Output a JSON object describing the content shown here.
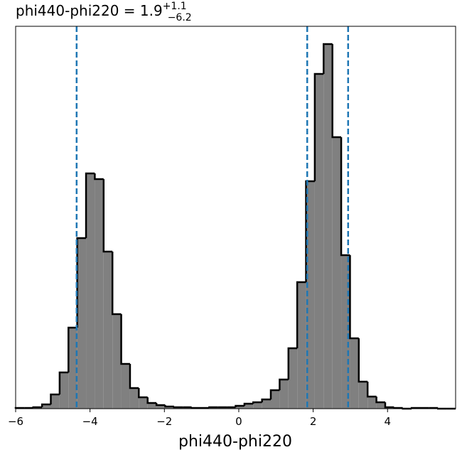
{
  "chart_data": {
    "type": "histogram",
    "title": {
      "text": "phi440-phi220 = 1.9",
      "upper": "+1.1",
      "lower": "−6.2"
    },
    "xlabel": "phi440-phi220",
    "bins": [
      -6.0,
      -5.763,
      -5.527,
      -5.29,
      -5.054,
      -4.817,
      -4.58,
      -4.344,
      -4.107,
      -3.871,
      -3.634,
      -3.397,
      -3.161,
      -2.924,
      -2.688,
      -2.451,
      -2.214,
      -1.978,
      -1.741,
      -1.505,
      -1.268,
      -1.031,
      -0.795,
      -0.558,
      -0.322,
      -0.085,
      0.152,
      0.388,
      0.625,
      0.861,
      1.098,
      1.335,
      1.571,
      1.808,
      2.044,
      2.281,
      2.518,
      2.754,
      2.991,
      3.227,
      3.464,
      3.701,
      3.937,
      4.174,
      4.41,
      4.647,
      4.884,
      5.12,
      5.357,
      5.593,
      5.83
    ],
    "values": [
      1,
      1,
      2,
      6,
      20,
      51,
      114,
      240,
      331,
      323,
      221,
      133,
      63,
      29,
      16,
      8,
      5,
      3,
      2,
      2,
      1,
      1,
      2,
      2,
      2,
      4,
      7,
      9,
      13,
      26,
      41,
      85,
      178,
      320,
      471,
      513,
      382,
      216,
      99,
      38,
      17,
      9,
      2,
      1,
      0,
      1,
      1,
      1,
      0,
      0
    ],
    "color": "#808080",
    "edge_color": "#000000",
    "quantile_lines": [
      -4.36,
      1.84,
      2.94
    ],
    "quantile_color": "#1f77b4",
    "xlim": [
      -6,
      5.83
    ],
    "ylim": [
      0,
      538
    ],
    "xticks": [
      {
        "value": -6,
        "label": "−6"
      },
      {
        "value": -4,
        "label": "−4"
      },
      {
        "value": -2,
        "label": "−2"
      },
      0,
      2,
      4
    ]
  }
}
